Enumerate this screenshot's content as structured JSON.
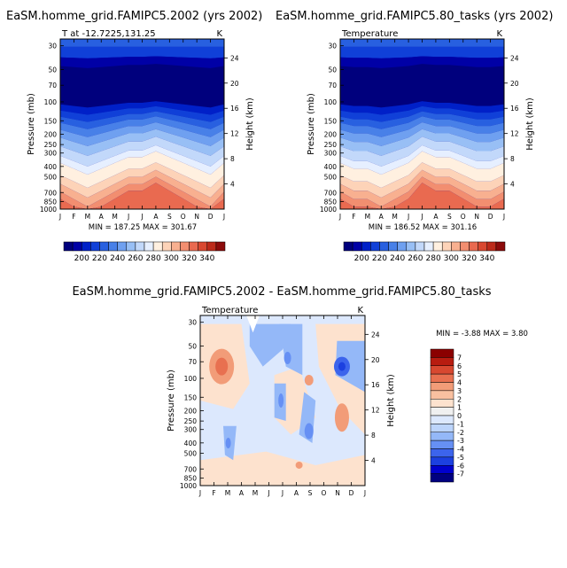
{
  "chart_data": [
    {
      "type": "heatmap",
      "title": "EaSM.homme_grid.FAMIPC5.2002 (yrs 2002)",
      "subtitle_left": "T at -12.7225,131.25",
      "units": "K",
      "xlabel": "",
      "ylabel": "Pressure (mb)",
      "ylabel_right": "Height (km)",
      "x_ticks": [
        "J",
        "F",
        "M",
        "A",
        "M",
        "J",
        "J",
        "A",
        "S",
        "O",
        "N",
        "D",
        "J"
      ],
      "y_ticks": [
        "30",
        "50",
        "70",
        "100",
        "150",
        "200",
        "250",
        "300",
        "400",
        "500",
        "700",
        "850",
        "1000"
      ],
      "y_right_ticks": [
        "24",
        "20",
        "16",
        "12",
        "8",
        "4"
      ],
      "minmax": "MIN = 187.25   MAX = 301.67",
      "colorbar_labels": [
        "200",
        "220",
        "240",
        "260",
        "280",
        "300",
        "320",
        "340"
      ]
    },
    {
      "type": "heatmap",
      "title": "EaSM.homme_grid.FAMIPC5.80_tasks (yrs 2002)",
      "subtitle_left": "Temperature",
      "units": "K",
      "xlabel": "",
      "ylabel": "Pressure (mb)",
      "ylabel_right": "Height (km)",
      "x_ticks": [
        "J",
        "F",
        "M",
        "A",
        "M",
        "J",
        "J",
        "A",
        "S",
        "O",
        "N",
        "D",
        "J"
      ],
      "y_ticks": [
        "30",
        "50",
        "70",
        "100",
        "150",
        "200",
        "250",
        "300",
        "400",
        "500",
        "700",
        "850",
        "1000"
      ],
      "y_right_ticks": [
        "24",
        "20",
        "16",
        "12",
        "8",
        "4"
      ],
      "minmax": "MIN = 186.52   MAX = 301.16",
      "colorbar_labels": [
        "200",
        "220",
        "240",
        "260",
        "280",
        "300",
        "320",
        "340"
      ]
    },
    {
      "type": "heatmap",
      "title": "EaSM.homme_grid.FAMIPC5.2002 - EaSM.homme_grid.FAMIPC5.80_tasks",
      "subtitle_left": "Temperature",
      "units": "K",
      "xlabel": "",
      "ylabel": "Pressure (mb)",
      "ylabel_right": "Height (km)",
      "x_ticks": [
        "J",
        "F",
        "M",
        "A",
        "M",
        "J",
        "J",
        "A",
        "S",
        "O",
        "N",
        "D",
        "J"
      ],
      "y_ticks": [
        "30",
        "50",
        "70",
        "100",
        "150",
        "200",
        "250",
        "300",
        "400",
        "500",
        "700",
        "850",
        "1000"
      ],
      "y_right_ticks": [
        "24",
        "20",
        "16",
        "12",
        "8",
        "4"
      ],
      "minmax": "MIN =   -3.88  MAX =    3.80",
      "colorbar_labels": [
        "7",
        "6",
        "5",
        "4",
        "3",
        "2",
        "1",
        "0",
        "-1",
        "-2",
        "-3",
        "-4",
        "-5",
        "-6",
        "-7"
      ]
    }
  ]
}
